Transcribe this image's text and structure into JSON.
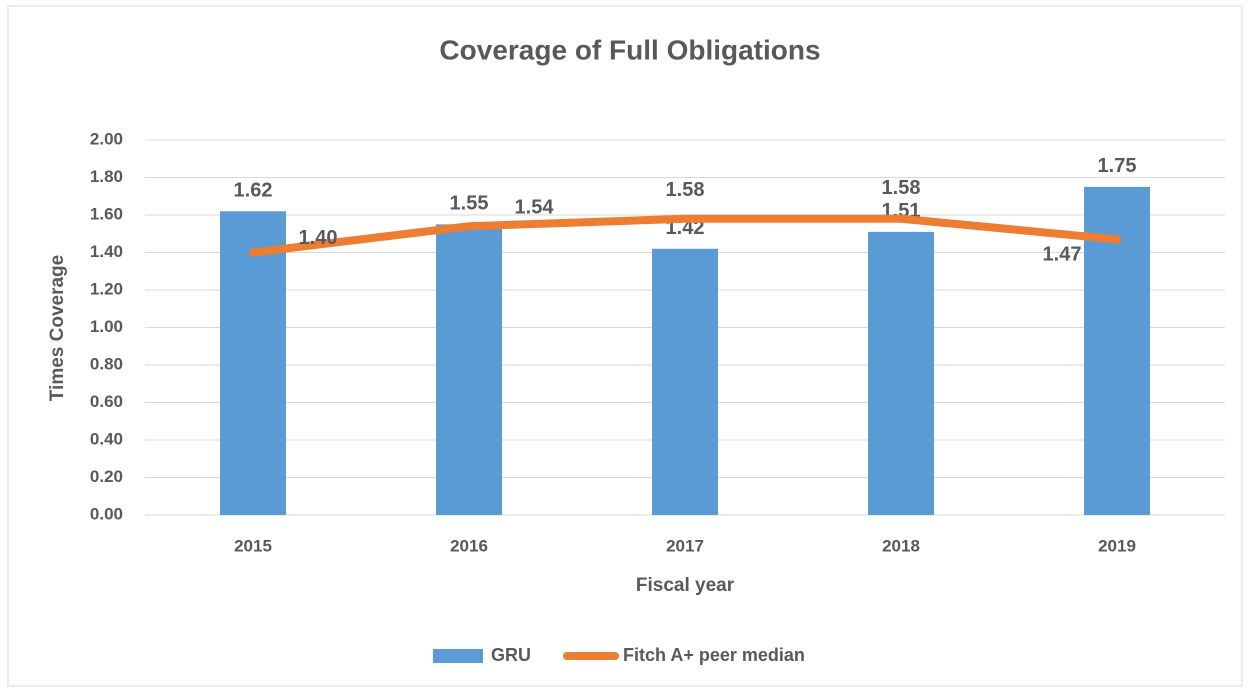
{
  "chart_data": {
    "type": "bar",
    "title": "Coverage of Full Obligations",
    "x_label": "Fiscal year",
    "y_label": "Times Coverage",
    "categories": [
      "2015",
      "2016",
      "2017",
      "2018",
      "2019"
    ],
    "series": [
      {
        "name": "GRU",
        "type": "bar",
        "color": "#5b9bd5",
        "values": [
          1.62,
          1.55,
          1.42,
          1.51,
          1.75
        ],
        "value_labels": [
          "1.62",
          "1.55",
          "1.42",
          "1.51",
          "1.75"
        ]
      },
      {
        "name": "Fitch A+ peer median",
        "type": "line",
        "color": "#ed7d31",
        "values": [
          1.4,
          1.54,
          1.58,
          1.58,
          1.47
        ],
        "value_labels": [
          "1.40",
          "1.54",
          "1.58",
          "1.58",
          "1.47"
        ]
      }
    ],
    "ylim": [
      0,
      2
    ],
    "yticks": [
      {
        "value": 0,
        "label": "0.00"
      },
      {
        "value": 0.2,
        "label": "0.20"
      },
      {
        "value": 0.4,
        "label": "0.40"
      },
      {
        "value": 0.6,
        "label": "0.60"
      },
      {
        "value": 0.8,
        "label": "0.80"
      },
      {
        "value": 1,
        "label": "1.00"
      },
      {
        "value": 1.2,
        "label": "1.20"
      },
      {
        "value": 1.4,
        "label": "1.40"
      },
      {
        "value": 1.6,
        "label": "1.60"
      },
      {
        "value": 1.8,
        "label": "1.80"
      },
      {
        "value": 2,
        "label": "2.00"
      }
    ],
    "grid": true,
    "legend": "bottom"
  }
}
